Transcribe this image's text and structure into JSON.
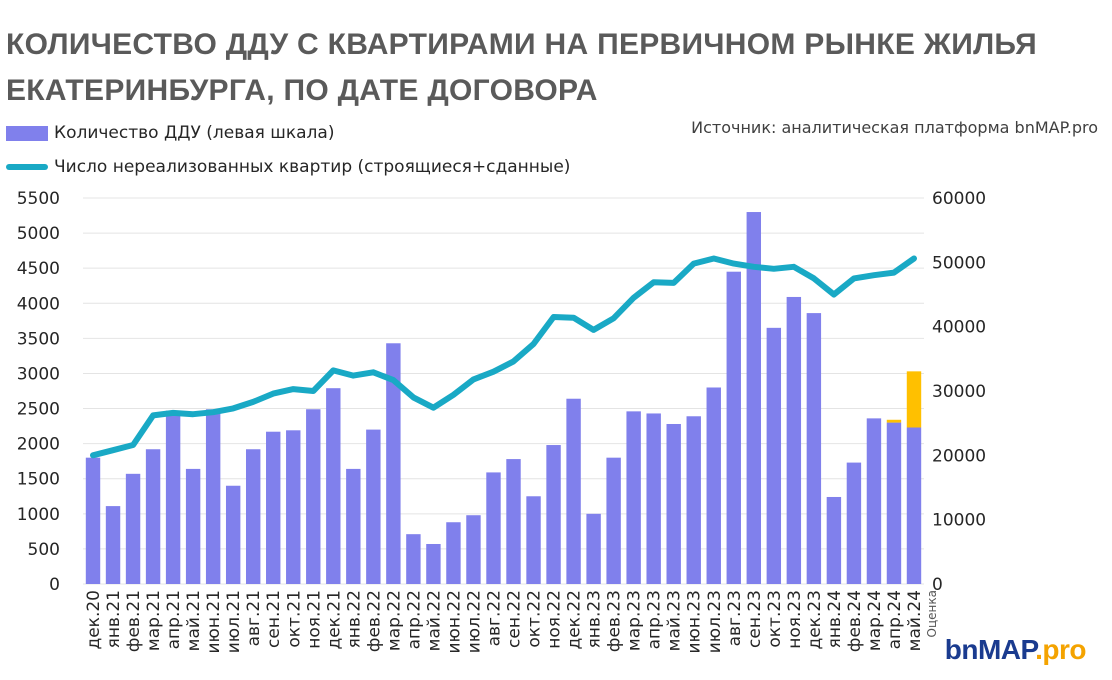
{
  "title": "КОЛИЧЕСТВО ДДУ С КВАРТИРАМИ НА ПЕРВИЧНОМ РЫНКЕ ЖИЛЬЯ ЕКАТЕРИНБУРГА, ПО ДАТЕ ДОГОВОРА",
  "source": "Источник: аналитическая платформа bnMAP.pro",
  "brand": {
    "part1": "bn",
    "part2": "MAP",
    "part3": ".pro"
  },
  "colors": {
    "bar": "#8080ec",
    "estimate": "#ffc000",
    "line": "#19a9c5",
    "grid": "#e4e4e4"
  },
  "chart_data": {
    "type": "bar+line",
    "categories": [
      "дек.20",
      "янв.21",
      "фев.21",
      "мар.21",
      "апр.21",
      "май.21",
      "июн.21",
      "июл.21",
      "авг.21",
      "сен.21",
      "окт.21",
      "ноя.21",
      "дек.21",
      "янв.22",
      "фев.22",
      "мар.22",
      "апр.22",
      "май.22",
      "июн.22",
      "июл.22",
      "авг.22",
      "сен.22",
      "окт.22",
      "ноя.22",
      "дек.22",
      "янв.23",
      "фев.23",
      "мар.23",
      "апр.23",
      "май.23",
      "июн.23",
      "июл.23",
      "авг.23",
      "сен.23",
      "окт.23",
      "ноя.23",
      "дек.23",
      "янв.24",
      "фев.24",
      "мар.24",
      "апр.24",
      "май.24"
    ],
    "last_category_note": "Оценка",
    "series": [
      {
        "name": "Количество ДДУ (левая шкала)",
        "type": "bar",
        "axis": "left",
        "values": [
          1800,
          1110,
          1570,
          1920,
          2470,
          1640,
          2490,
          1400,
          1920,
          2170,
          2190,
          2490,
          2790,
          1640,
          2200,
          3430,
          710,
          570,
          880,
          980,
          1590,
          1780,
          1250,
          1980,
          2640,
          1000,
          1800,
          2460,
          2430,
          2280,
          2390,
          2800,
          4450,
          5300,
          3650,
          4090,
          3860,
          1240,
          1730,
          2360,
          2300,
          2230
        ]
      },
      {
        "name": "Оценка",
        "type": "bar-stack",
        "axis": "left",
        "values": [
          0,
          0,
          0,
          0,
          0,
          0,
          0,
          0,
          0,
          0,
          0,
          0,
          0,
          0,
          0,
          0,
          0,
          0,
          0,
          0,
          0,
          0,
          0,
          0,
          0,
          0,
          0,
          0,
          0,
          0,
          0,
          0,
          0,
          0,
          0,
          0,
          0,
          0,
          0,
          0,
          40,
          800
        ]
      },
      {
        "name": "Число нереализованных квартир (строящиеся+сданные)",
        "type": "line",
        "axis": "right",
        "values": [
          20000,
          20800,
          21600,
          26200,
          26600,
          26400,
          26700,
          27300,
          28300,
          29600,
          30300,
          30000,
          33200,
          32400,
          32900,
          31700,
          29000,
          27400,
          29400,
          31800,
          33000,
          34600,
          37300,
          41500,
          41400,
          39500,
          41300,
          44500,
          46900,
          46800,
          49800,
          50600,
          49800,
          49300,
          49000,
          49300,
          47500,
          45000,
          47500,
          48000,
          48400,
          50600
        ]
      }
    ],
    "left_axis": {
      "min": 0,
      "max": 5500,
      "ticks": [
        "0",
        "500",
        "1000",
        "1500",
        "2000",
        "2500",
        "3000",
        "3500",
        "4000",
        "4500",
        "5000",
        "5500"
      ]
    },
    "right_axis": {
      "min": 0,
      "max": 60000,
      "ticks": [
        "0",
        "10000",
        "20000",
        "30000",
        "40000",
        "50000",
        "60000"
      ]
    }
  }
}
